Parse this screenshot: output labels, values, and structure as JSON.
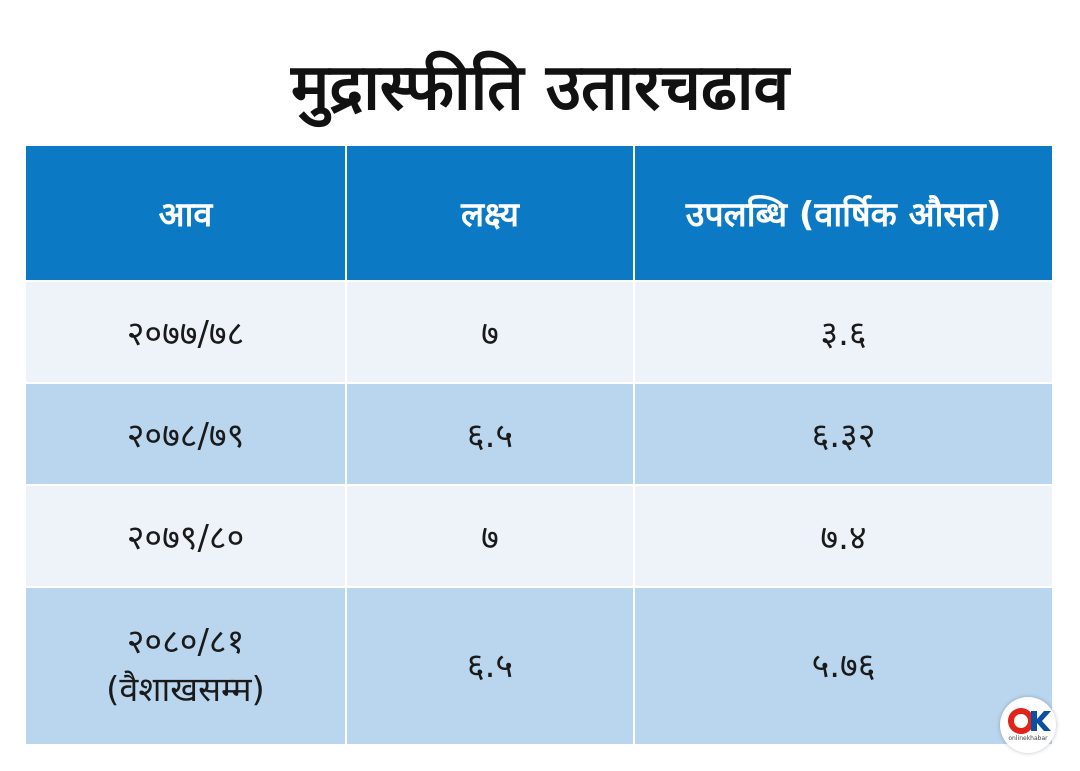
{
  "title": "मुद्रास्फीति उतारचढाव",
  "chart_data": {
    "type": "table",
    "title": "मुद्रास्फीति उतारचढाव",
    "columns": [
      "आव",
      "लक्ष्य",
      "उपलब्धि (वार्षिक औसत)"
    ],
    "rows": [
      {
        "year": "२०७७/७८",
        "year_note": "",
        "target": "७",
        "achievement": "३.६"
      },
      {
        "year": "२०७८/७९",
        "year_note": "",
        "target": "६.५",
        "achievement": "६.३२"
      },
      {
        "year": "२०७९/८०",
        "year_note": "",
        "target": "७",
        "achievement": "७.४"
      },
      {
        "year": "२०८०/८१",
        "year_note": "(वैशाखसम्म)",
        "target": "६.५",
        "achievement": "५.७६"
      }
    ]
  },
  "logo": {
    "name": "ok-logo-icon",
    "text": "onlinekhabar"
  },
  "colors": {
    "header_bg": "#0b79c4",
    "row_light": "#eef3fa",
    "row_blue": "#bad6ef",
    "logo_red": "#e2231a",
    "logo_blue": "#0b4ea2"
  }
}
